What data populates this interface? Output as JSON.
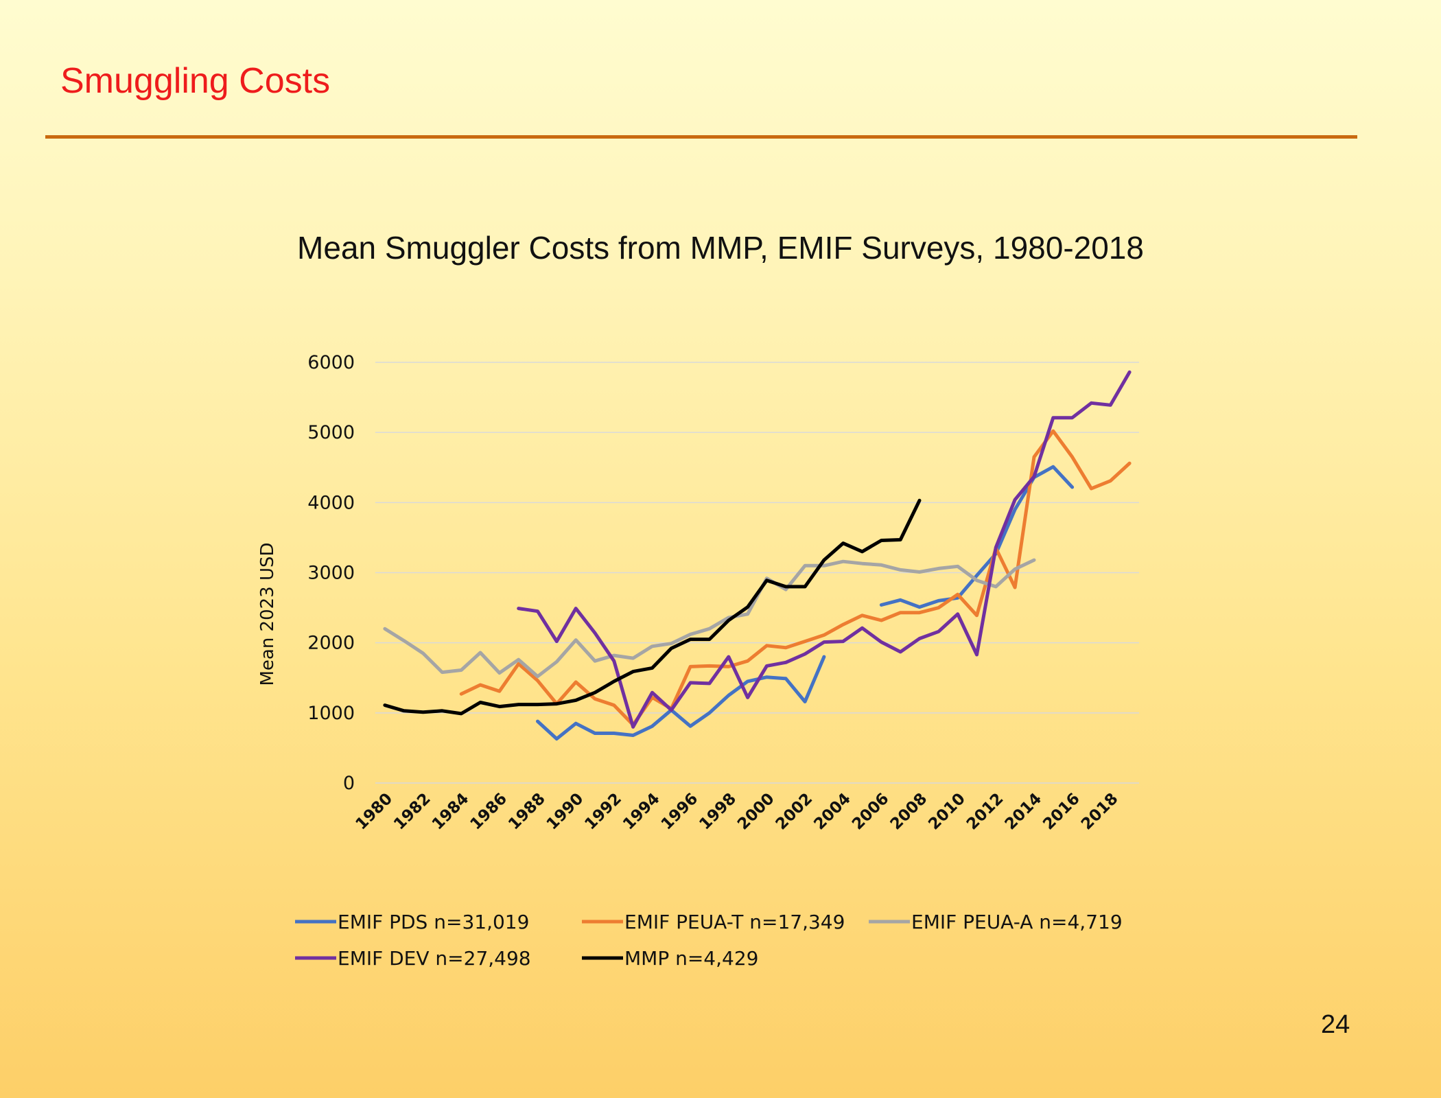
{
  "slide": {
    "title": "Smuggling Costs",
    "page_number": "24"
  },
  "colors": {
    "title": "#ee1c1c",
    "rule": "#c96a10",
    "gridline": "#d9d9d9"
  },
  "chart_data": {
    "type": "line",
    "title": "Mean Smuggler Costs from MMP, EMIF Surveys, 1980-2018",
    "xlabel": "",
    "ylabel": "Mean  2023 USD",
    "ylim": [
      0,
      6000
    ],
    "yticks": [
      0,
      1000,
      2000,
      3000,
      4000,
      5000,
      6000
    ],
    "x": [
      1980,
      1981,
      1982,
      1983,
      1984,
      1985,
      1986,
      1987,
      1988,
      1989,
      1990,
      1991,
      1992,
      1993,
      1994,
      1995,
      1996,
      1997,
      1998,
      1999,
      2000,
      2001,
      2002,
      2003,
      2004,
      2005,
      2006,
      2007,
      2008,
      2009,
      2010,
      2011,
      2012,
      2013,
      2014,
      2015,
      2016,
      2017,
      2018,
      2019
    ],
    "xtick_labels": [
      "1980",
      "1982",
      "1984",
      "1986",
      "1988",
      "1990",
      "1992",
      "1994",
      "1996",
      "1998",
      "2000",
      "2002",
      "2004",
      "2006",
      "2008",
      "2010",
      "2012",
      "2014",
      "2016",
      "2018"
    ],
    "grid": true,
    "legend_position": "bottom",
    "series": [
      {
        "name": "EMIF PDS n=31,019",
        "color": "#4472c4",
        "values": [
          null,
          null,
          null,
          null,
          null,
          null,
          null,
          null,
          880,
          630,
          850,
          710,
          710,
          680,
          810,
          1040,
          810,
          1000,
          1250,
          1450,
          1510,
          1490,
          1160,
          1800,
          null,
          null,
          2540,
          2610,
          2510,
          2600,
          2640,
          2960,
          3270,
          3900,
          4360,
          4510,
          4220,
          null,
          null,
          null
        ]
      },
      {
        "name": "EMIF PEUA-T n=17,349",
        "color": "#ed7d31",
        "values": [
          null,
          null,
          null,
          null,
          1270,
          1400,
          1310,
          1700,
          1460,
          1130,
          1440,
          1200,
          1110,
          830,
          1220,
          1060,
          1660,
          1670,
          1660,
          1740,
          1960,
          1930,
          2020,
          2110,
          2260,
          2390,
          2320,
          2430,
          2430,
          2500,
          2690,
          2390,
          3350,
          2790,
          4650,
          5020,
          4650,
          4200,
          4310,
          4560
        ]
      },
      {
        "name": "EMIF PEUA-A n=4,719",
        "color": "#a5a5a5",
        "values": [
          2200,
          2030,
          1850,
          1580,
          1610,
          1860,
          1570,
          1760,
          1520,
          1730,
          2040,
          1740,
          1820,
          1780,
          1950,
          1990,
          2120,
          2200,
          2360,
          2410,
          2920,
          2760,
          3100,
          3100,
          3160,
          3130,
          3110,
          3040,
          3010,
          3060,
          3090,
          2890,
          2800,
          3050,
          3180,
          null,
          null,
          null,
          null,
          null
        ]
      },
      {
        "name": "EMIF DEV n=27,498",
        "color": "#7030a0",
        "values": [
          null,
          null,
          null,
          null,
          null,
          null,
          null,
          2490,
          2450,
          2020,
          2490,
          2140,
          1740,
          800,
          1290,
          1040,
          1430,
          1420,
          1800,
          1220,
          1670,
          1720,
          1840,
          2010,
          2020,
          2210,
          2010,
          1870,
          2060,
          2160,
          2410,
          1830,
          3360,
          4040,
          4370,
          5210,
          5210,
          5420,
          5390,
          5860
        ]
      },
      {
        "name": "MMP n=4,429",
        "color": "#000000",
        "values": [
          1110,
          1030,
          1010,
          1030,
          990,
          1150,
          1090,
          1120,
          1120,
          1130,
          1180,
          1290,
          1450,
          1590,
          1640,
          1920,
          2050,
          2050,
          2320,
          2510,
          2890,
          2800,
          2800,
          3180,
          3420,
          3300,
          3460,
          3470,
          4030,
          null,
          null,
          null,
          null,
          null,
          null,
          null,
          null,
          null,
          null,
          null
        ]
      }
    ]
  }
}
